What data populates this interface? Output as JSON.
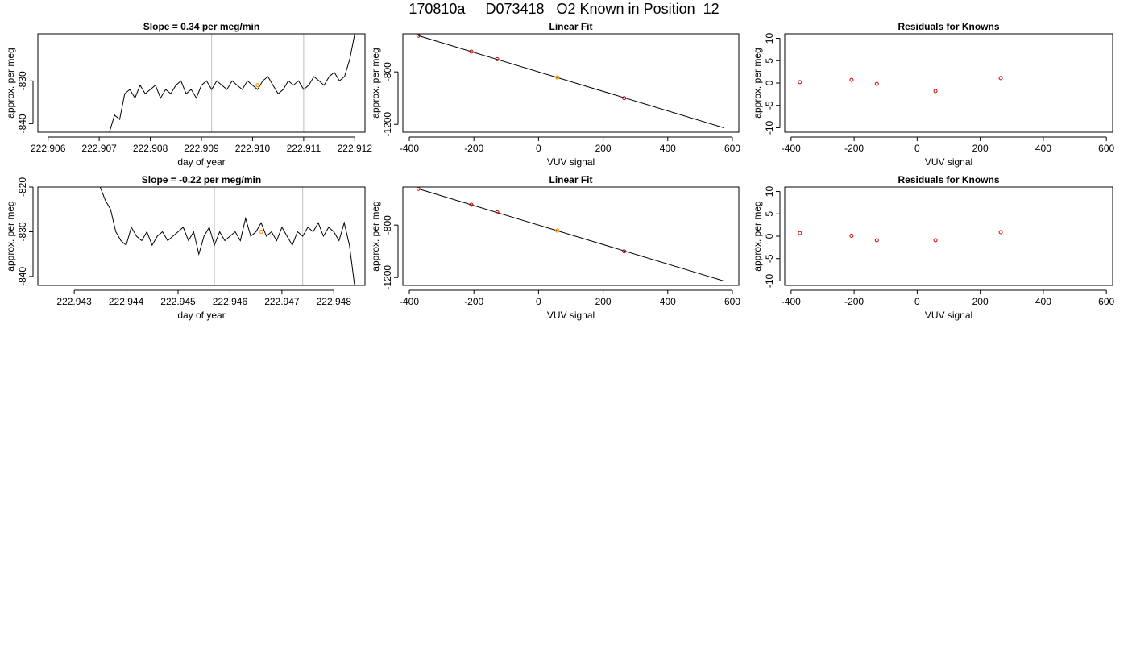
{
  "page_title": "170810a     D073418   O2 Known in Position  12",
  "chart_data": [
    {
      "type": "line",
      "title": "Slope =  0.34  per meg/min",
      "xlabel": "day of year",
      "ylabel": "approx. per meg",
      "xlim": [
        222.9058,
        222.9122
      ],
      "ylim": [
        -842,
        -819
      ],
      "xticks": [
        "222.906",
        "222.907",
        "222.908",
        "222.909",
        "222.910",
        "222.911",
        "222.912"
      ],
      "xtick_values": [
        222.906,
        222.907,
        222.908,
        222.909,
        222.91,
        222.911,
        222.912
      ],
      "yticks": [
        "-840",
        "-830"
      ],
      "ytick_values": [
        -840,
        -830
      ],
      "vlines": [
        222.9092,
        222.911
      ],
      "series": [
        {
          "x": [
            222.9072,
            222.9073,
            222.9074,
            222.9075,
            222.9076,
            222.9077,
            222.9078,
            222.9079,
            222.908,
            222.9081,
            222.9082,
            222.9083,
            222.9084,
            222.9085,
            222.9086,
            222.9087,
            222.9088,
            222.9089,
            222.909,
            222.9091,
            222.9092,
            222.9093,
            222.9094,
            222.9095,
            222.9096,
            222.9097,
            222.9098,
            222.9099,
            222.91,
            222.9101,
            222.9102,
            222.9103,
            222.9104,
            222.9105,
            222.9106,
            222.9107,
            222.9108,
            222.9109,
            222.911,
            222.9111,
            222.9112,
            222.9113,
            222.9114,
            222.9115,
            222.9116,
            222.9117,
            222.9118,
            222.9119,
            222.912
          ],
          "y": [
            -842,
            -838,
            -839,
            -833,
            -832,
            -834,
            -831,
            -833,
            -832,
            -831,
            -834,
            -832,
            -833,
            -831,
            -830,
            -833,
            -832,
            -834,
            -831,
            -830,
            -832,
            -830,
            -831,
            -832,
            -830,
            -831,
            -832,
            -830,
            -831,
            -832,
            -830,
            -829,
            -831,
            -833,
            -832,
            -830,
            -831,
            -830,
            -832,
            -831,
            -829,
            -830,
            -831,
            -829,
            -828,
            -830,
            -829,
            -825,
            -819
          ]
        }
      ],
      "highlight_point": {
        "x": 222.9101,
        "y": -831
      }
    },
    {
      "type": "scatter",
      "title": "Linear Fit",
      "xlabel": "VUV signal",
      "ylabel": "approx. per meg",
      "xlim": [
        -420,
        620
      ],
      "ylim": [
        -1260,
        -510
      ],
      "xticks": [
        "-400",
        "-200",
        "0",
        "200",
        "400",
        "600"
      ],
      "xtick_values": [
        -400,
        -200,
        0,
        200,
        400,
        600
      ],
      "yticks": [
        "-1200",
        "-800"
      ],
      "ytick_values": [
        -1200,
        -800
      ],
      "points": [
        {
          "x": -372,
          "y": -524
        },
        {
          "x": -208,
          "y": -645
        },
        {
          "x": -128,
          "y": -703
        },
        {
          "x": 265,
          "y": -1000
        }
      ],
      "highlight_point": {
        "x": 58,
        "y": -842
      },
      "fit_line": {
        "x": [
          -372,
          575
        ],
        "y": -0.743,
        "intercept": -800
      }
    },
    {
      "type": "scatter",
      "title": "Residuals for Knowns",
      "xlabel": "VUV signal",
      "ylabel": "approx. per meg",
      "xlim": [
        -420,
        620
      ],
      "ylim": [
        -11,
        11
      ],
      "xticks": [
        "-400",
        "-200",
        "0",
        "200",
        "400",
        "600"
      ],
      "xtick_values": [
        -400,
        -200,
        0,
        200,
        400,
        600
      ],
      "yticks": [
        "-10",
        "-5",
        "0",
        "5",
        "10"
      ],
      "ytick_values": [
        -10,
        -5,
        0,
        5,
        10
      ],
      "points": [
        {
          "x": -372,
          "y": 0.2
        },
        {
          "x": -208,
          "y": 0.7
        },
        {
          "x": -128,
          "y": -0.2
        },
        {
          "x": 58,
          "y": -1.8
        },
        {
          "x": 265,
          "y": 1.1
        }
      ]
    },
    {
      "type": "line",
      "title": "Slope =  -0.22  per meg/min",
      "xlabel": "day of year",
      "ylabel": "approx. per meg",
      "xlim": [
        222.9423,
        222.9486
      ],
      "ylim": [
        -842,
        -820
      ],
      "xticks": [
        "222.943",
        "222.944",
        "222.945",
        "222.946",
        "222.947",
        "222.948"
      ],
      "xtick_values": [
        222.943,
        222.944,
        222.945,
        222.946,
        222.947,
        222.948
      ],
      "yticks": [
        "-840",
        "-830",
        "-820"
      ],
      "ytick_values": [
        -840,
        -830,
        -820
      ],
      "vlines": [
        222.9457,
        222.9474
      ],
      "series": [
        {
          "x": [
            222.9435,
            222.9436,
            222.9437,
            222.9438,
            222.9439,
            222.944,
            222.9441,
            222.9442,
            222.9443,
            222.9444,
            222.9445,
            222.9446,
            222.9447,
            222.9448,
            222.9449,
            222.945,
            222.9451,
            222.9452,
            222.9453,
            222.9454,
            222.9455,
            222.9456,
            222.9457,
            222.9458,
            222.9459,
            222.946,
            222.9461,
            222.9462,
            222.9463,
            222.9464,
            222.9465,
            222.9466,
            222.9467,
            222.9468,
            222.9469,
            222.947,
            222.9471,
            222.9472,
            222.9473,
            222.9474,
            222.9475,
            222.9476,
            222.9477,
            222.9478,
            222.9479,
            222.948,
            222.9481,
            222.9482,
            222.9483,
            222.9484
          ],
          "y": [
            -820,
            -823,
            -825,
            -830,
            -832,
            -833,
            -829,
            -831,
            -832,
            -830,
            -833,
            -831,
            -830,
            -832,
            -831,
            -830,
            -829,
            -832,
            -830,
            -835,
            -831,
            -829,
            -833,
            -830,
            -832,
            -831,
            -830,
            -832,
            -827,
            -831,
            -830,
            -828,
            -831,
            -830,
            -832,
            -829,
            -831,
            -833,
            -830,
            -831,
            -829,
            -830,
            -828,
            -831,
            -829,
            -830,
            -832,
            -828,
            -833,
            -842
          ]
        }
      ],
      "highlight_point": {
        "x": 222.9466,
        "y": -830
      }
    },
    {
      "type": "scatter",
      "title": "Linear Fit",
      "xlabel": "VUV signal",
      "ylabel": "approx. per meg",
      "xlim": [
        -420,
        620
      ],
      "ylim": [
        -1260,
        -510
      ],
      "xticks": [
        "-400",
        "-200",
        "0",
        "200",
        "400",
        "600"
      ],
      "xtick_values": [
        -400,
        -200,
        0,
        200,
        400,
        600
      ],
      "yticks": [
        "-1200",
        "-800"
      ],
      "ytick_values": [
        -1200,
        -800
      ],
      "points": [
        {
          "x": -372,
          "y": -524
        },
        {
          "x": -208,
          "y": -645
        },
        {
          "x": -128,
          "y": -703
        },
        {
          "x": 265,
          "y": -1000
        }
      ],
      "highlight_point": {
        "x": 58,
        "y": -842
      },
      "fit_line": {
        "x": [
          -372,
          575
        ],
        "y": -0.743,
        "intercept": -800
      }
    },
    {
      "type": "scatter",
      "title": "Residuals for Knowns",
      "xlabel": "VUV signal",
      "ylabel": "approx. per meg",
      "xlim": [
        -420,
        620
      ],
      "ylim": [
        -11,
        11
      ],
      "xticks": [
        "-400",
        "-200",
        "0",
        "200",
        "400",
        "600"
      ],
      "xtick_values": [
        -400,
        -200,
        0,
        200,
        400,
        600
      ],
      "yticks": [
        "-10",
        "-5",
        "0",
        "5",
        "10"
      ],
      "ytick_values": [
        -10,
        -5,
        0,
        5,
        10
      ],
      "points": [
        {
          "x": -372,
          "y": 0.7
        },
        {
          "x": -208,
          "y": 0.1
        },
        {
          "x": -128,
          "y": -0.9
        },
        {
          "x": 58,
          "y": -0.9
        },
        {
          "x": 265,
          "y": 0.9
        }
      ]
    }
  ],
  "colors": {
    "line": "#000000",
    "vline": "#bebebe",
    "point": "#cc0000",
    "highlight": "#ff9900"
  }
}
